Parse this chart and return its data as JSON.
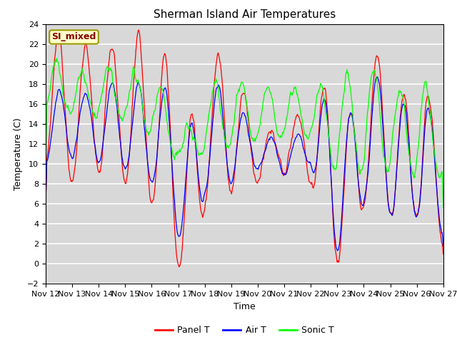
{
  "title": "Sherman Island Air Temperatures",
  "xlabel": "Time",
  "ylabel": "Temperature (C)",
  "ylim": [
    -2,
    24
  ],
  "yticks": [
    -2,
    0,
    2,
    4,
    6,
    8,
    10,
    12,
    14,
    16,
    18,
    20,
    22,
    24
  ],
  "xtick_labels": [
    "Nov 12",
    "Nov 13",
    "Nov 14",
    "Nov 15",
    "Nov 16",
    "Nov 17",
    "Nov 18",
    "Nov 19",
    "Nov 20",
    "Nov 21",
    "Nov 22",
    "Nov 23",
    "Nov 24",
    "Nov 25",
    "Nov 26",
    "Nov 27"
  ],
  "colors": {
    "panel_t": "#FF0000",
    "air_t": "#0000FF",
    "sonic_t": "#00FF00",
    "background": "#D8D8D8",
    "grid": "#FFFFFF",
    "annotation_bg": "#FFFFCC",
    "annotation_border": "#999900",
    "annotation_text": "#880000"
  },
  "annotation": "SI_mixed",
  "legend_entries": [
    "Panel T",
    "Air T",
    "Sonic T"
  ],
  "n_points": 720,
  "figsize": [
    6.4,
    4.8
  ],
  "dpi": 100
}
